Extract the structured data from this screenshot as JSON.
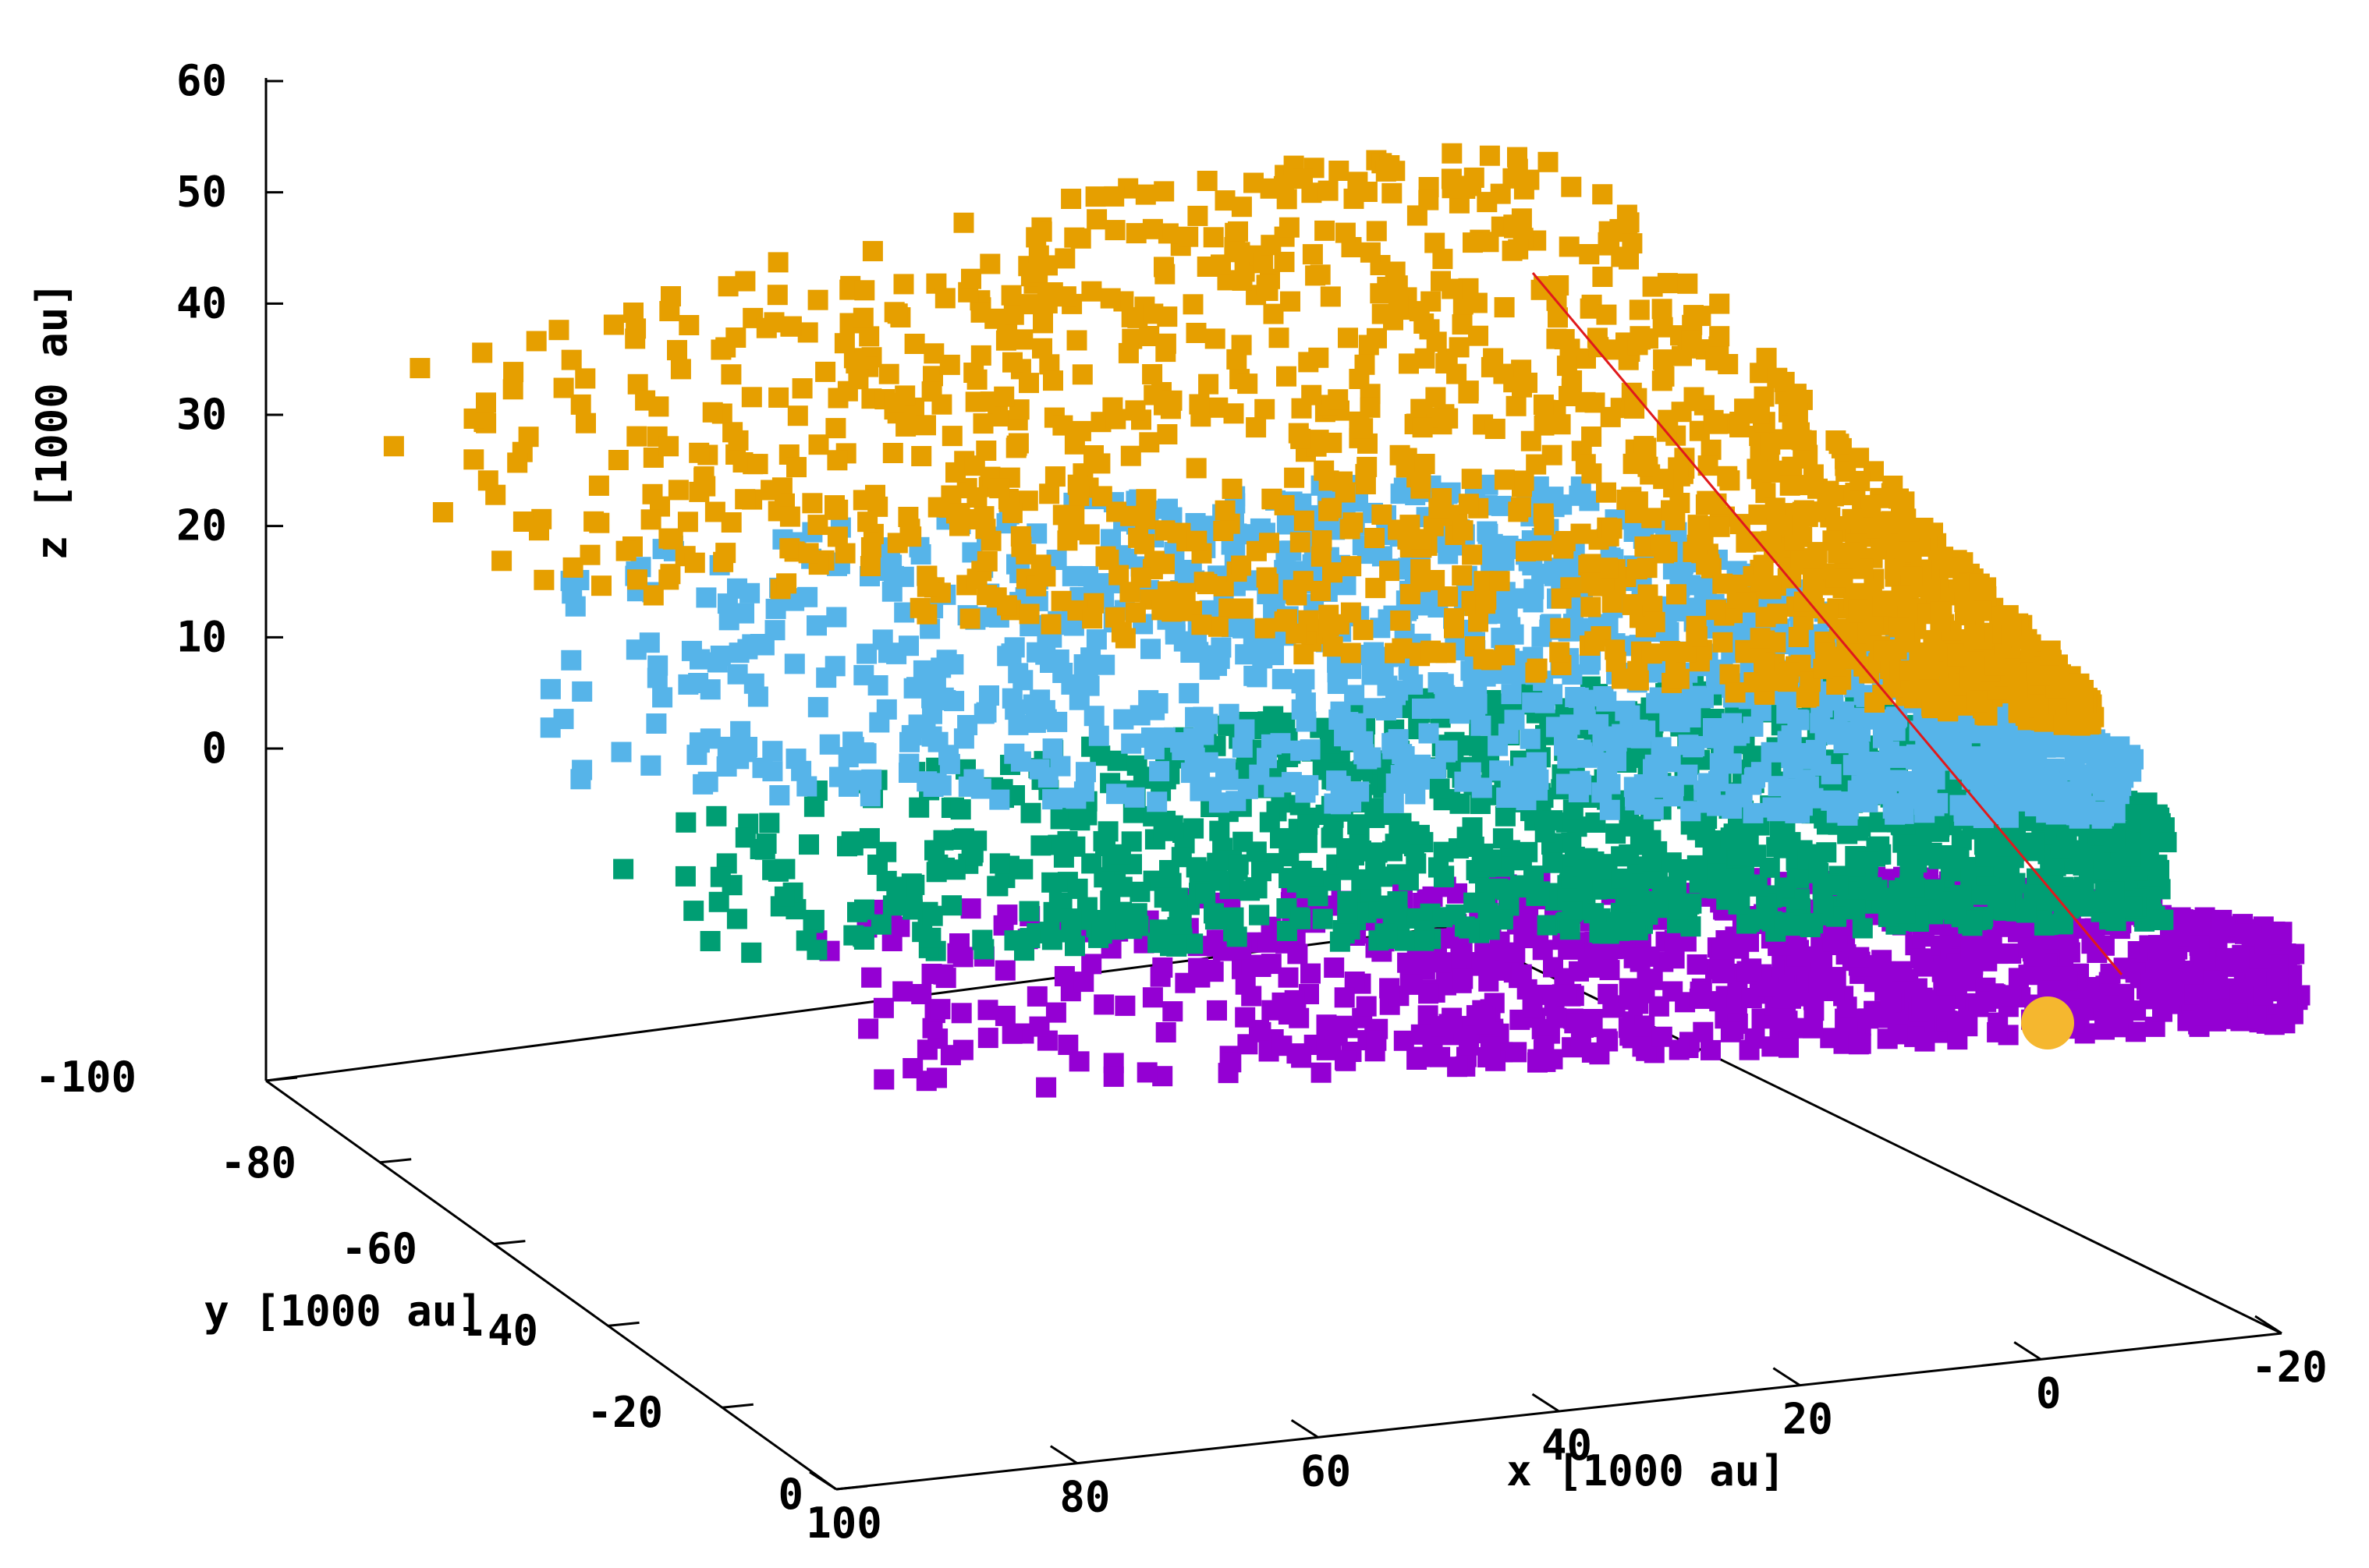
{
  "chart_data": {
    "type": "scatter",
    "projection": "3d",
    "title": "",
    "xlabel": "x [1000 au]",
    "ylabel": "y [1000 au]",
    "zlabel": "z [1000 au]",
    "xlim": [
      -20,
      100
    ],
    "ylim": [
      -100,
      0
    ],
    "zlim": [
      -10,
      60
    ],
    "x_ticks": [
      "-20",
      "0",
      "20",
      "40",
      "60",
      "80",
      "100"
    ],
    "y_ticks": [
      "-100",
      "-80",
      "-60",
      "-40",
      "-20",
      "0"
    ],
    "z_ticks": [
      "0",
      "10",
      "20",
      "30",
      "40",
      "50",
      "60"
    ],
    "grid": false,
    "legend": "none",
    "series": [
      {
        "color": "#e69f00",
        "marker": "square",
        "z_center": 30,
        "point_count": 1400,
        "description_points": [
          [
            0,
            -10,
            38
          ],
          [
            10,
            -30,
            40
          ],
          [
            30,
            -50,
            32
          ],
          [
            50,
            -70,
            30
          ],
          [
            80,
            -90,
            33
          ],
          [
            -10,
            -5,
            20
          ]
        ]
      },
      {
        "color": "#56b4e9",
        "marker": "square",
        "z_center": 18,
        "point_count": 1300
      },
      {
        "color": "#009e73",
        "marker": "square",
        "z_center": 6,
        "point_count": 1300
      },
      {
        "color": "#9400d3",
        "marker": "square",
        "z_center": -6,
        "point_count": 1000
      }
    ],
    "trajectory": {
      "color": "#e0191c",
      "from": [
        10,
        -5,
        40
      ],
      "to": [
        0,
        -2,
        -6
      ]
    },
    "sun_marker": {
      "color": "#f5b72f",
      "position": [
        0,
        0,
        -5
      ]
    }
  }
}
